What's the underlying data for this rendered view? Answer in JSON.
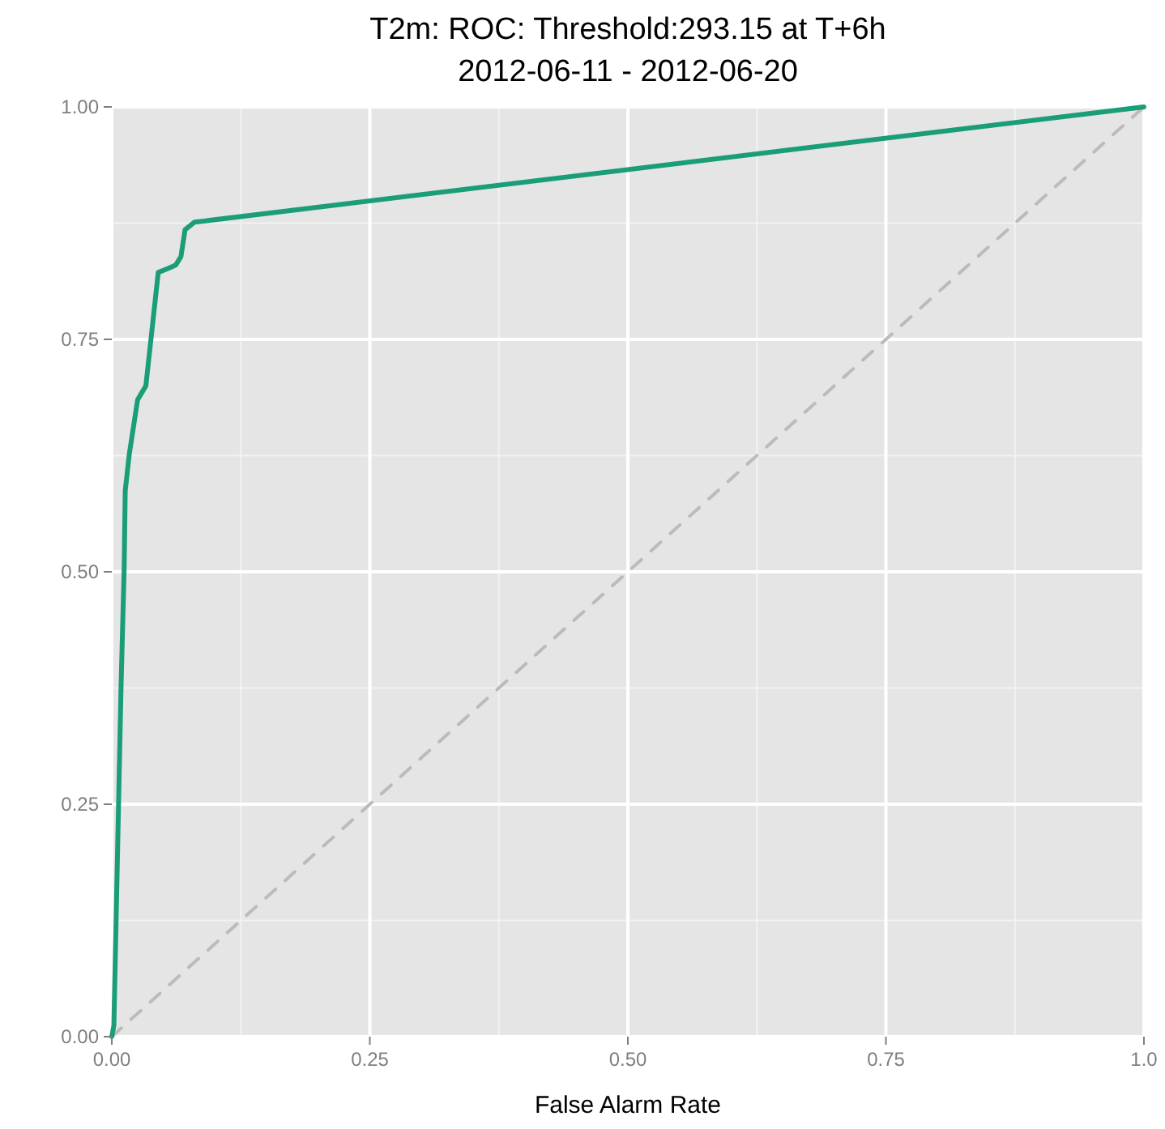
{
  "chart_data": {
    "type": "line",
    "title": "T2m: ROC: Threshold:293.15 at T+6h",
    "subtitle": "2012-06-11 - 2012-06-20",
    "xlabel": "False Alarm Rate",
    "xlim": [
      0,
      1
    ],
    "ylim": [
      0,
      1
    ],
    "xticks": [
      {
        "value": 0,
        "label": "0.00"
      },
      {
        "value": 0.25,
        "label": "0.25"
      },
      {
        "value": 0.5,
        "label": "0.50"
      },
      {
        "value": 0.75,
        "label": "0.75"
      },
      {
        "value": 1,
        "label": "1.0"
      }
    ],
    "yticks": [
      {
        "value": 0,
        "label": "0.00"
      },
      {
        "value": 0.25,
        "label": "0.25"
      },
      {
        "value": 0.5,
        "label": "0.50"
      },
      {
        "value": 0.75,
        "label": "0.75"
      },
      {
        "value": 1,
        "label": "1.00"
      }
    ],
    "grid": true,
    "series": [
      {
        "color": "#bbbbbb",
        "line_style": "dashed",
        "x": [
          0,
          1
        ],
        "values": [
          0,
          1
        ]
      },
      {
        "color": "#1b9e77",
        "line_style": "solid",
        "x": [
          0,
          0.002,
          0.009,
          0.012,
          0.013,
          0.017,
          0.025,
          0.033,
          0.045,
          0.054,
          0.062,
          0.067,
          0.071,
          0.08,
          1
        ],
        "values": [
          0,
          0.012,
          0.378,
          0.505,
          0.587,
          0.627,
          0.685,
          0.7,
          0.822,
          0.826,
          0.83,
          0.839,
          0.868,
          0.876,
          1
        ]
      }
    ]
  }
}
